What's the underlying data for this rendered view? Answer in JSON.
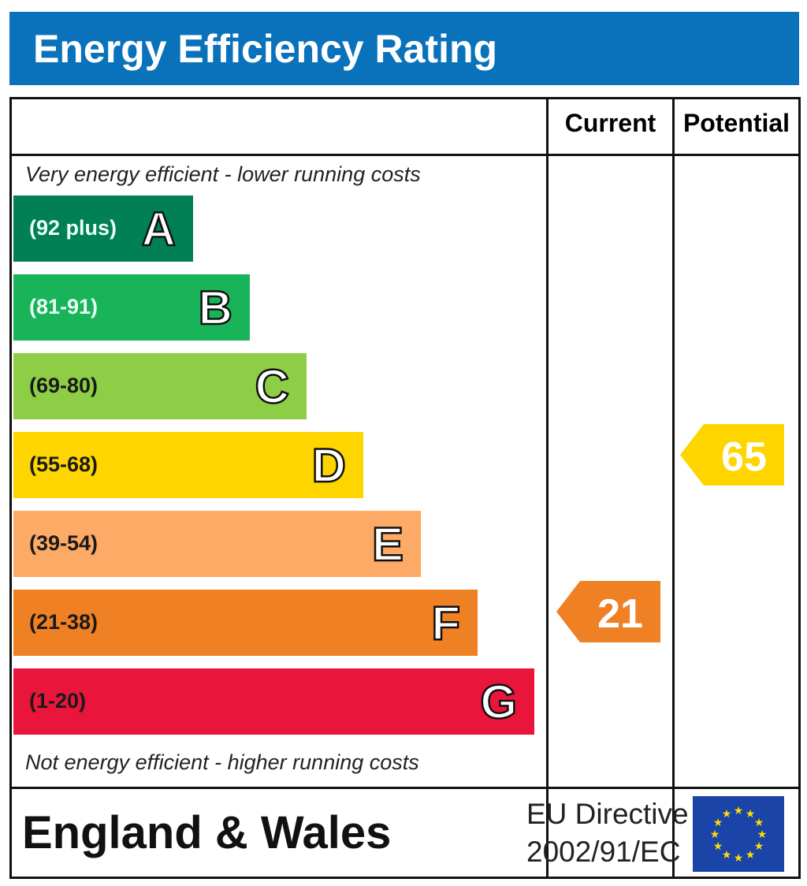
{
  "title": "Energy Efficiency Rating",
  "chart_data": {
    "type": "bar",
    "title": "Energy Efficiency Rating",
    "columns": [
      "Current",
      "Potential"
    ],
    "top_note": "Very energy efficient - lower running costs",
    "bottom_note": "Not energy efficient - higher running costs",
    "bands": [
      {
        "letter": "A",
        "range": "(92 plus)",
        "min": 92,
        "max": 100,
        "color": "#008054",
        "text_color": "#e8fff4"
      },
      {
        "letter": "B",
        "range": "(81-91)",
        "min": 81,
        "max": 91,
        "color": "#19b459",
        "text_color": "#e8fff4"
      },
      {
        "letter": "C",
        "range": "(69-80)",
        "min": 69,
        "max": 80,
        "color": "#8dce46",
        "text_color": "#1a1a1a"
      },
      {
        "letter": "D",
        "range": "(55-68)",
        "min": 55,
        "max": 68,
        "color": "#ffd500",
        "text_color": "#1a1a1a"
      },
      {
        "letter": "E",
        "range": "(39-54)",
        "min": 39,
        "max": 54,
        "color": "#fcaa65",
        "text_color": "#1a1a1a"
      },
      {
        "letter": "F",
        "range": "(21-38)",
        "min": 21,
        "max": 38,
        "color": "#ef8023",
        "text_color": "#1a1a1a"
      },
      {
        "letter": "G",
        "range": "(1-20)",
        "min": 1,
        "max": 20,
        "color": "#e9153b",
        "text_color": "#1a1a1a"
      }
    ],
    "current": {
      "value": 21,
      "color": "#ef8023"
    },
    "potential": {
      "value": 65,
      "color": "#ffd500"
    }
  },
  "footer": {
    "region": "England & Wales",
    "directive_line1": "EU Directive",
    "directive_line2": "2002/91/EC"
  }
}
